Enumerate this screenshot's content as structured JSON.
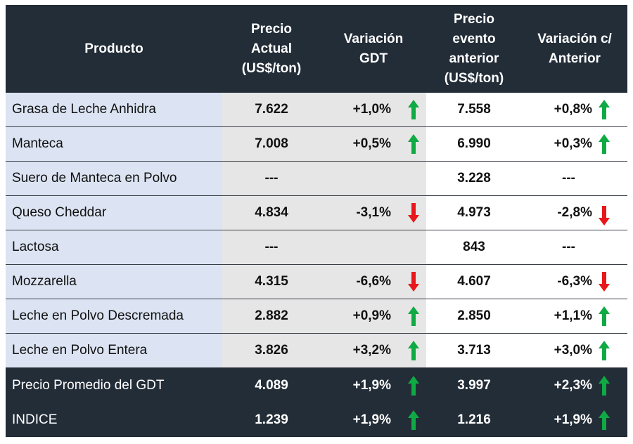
{
  "headers": {
    "producto": [
      "Producto"
    ],
    "precio_actual": [
      "Precio",
      "Actual",
      "(US$/ton)"
    ],
    "variacion_gdt": [
      "Variación",
      "GDT"
    ],
    "precio_anterior": [
      "Precio",
      "evento",
      "anterior",
      "(US$/ton)"
    ],
    "variacion_anterior": [
      "Variación c/",
      "Anterior"
    ]
  },
  "colors": {
    "up": "#0faa44",
    "down": "#e8171b",
    "dark": "#232d38"
  },
  "rows": [
    {
      "product": "Grasa de Leche Anhidra",
      "price": "7.622",
      "var_gdt": "+1,0%",
      "gdt_dir": "up-arrow-icon",
      "prev_price": "7.558",
      "var_prev": "+0,8%",
      "prev_dir": "up-arrow-icon"
    },
    {
      "product": "Manteca",
      "price": "7.008",
      "var_gdt": "+0,5%",
      "gdt_dir": "up-arrow-icon",
      "prev_price": "6.990",
      "var_prev": "+0,3%",
      "prev_dir": "up-arrow-icon"
    },
    {
      "product": "Suero de Manteca en Polvo",
      "price": "---",
      "var_gdt": "",
      "gdt_dir": "",
      "prev_price": "3.228",
      "var_prev": "---",
      "prev_dir": ""
    },
    {
      "product": "Queso Cheddar",
      "price": "4.834",
      "var_gdt": "-3,1%",
      "gdt_dir": "down-arrow-icon",
      "prev_price": "4.973",
      "var_prev": "-2,8%",
      "prev_dir": "down-arrow-icon"
    },
    {
      "product": "Lactosa",
      "price": "---",
      "var_gdt": "",
      "gdt_dir": "",
      "prev_price": "843",
      "var_prev": "---",
      "prev_dir": ""
    },
    {
      "product": "Mozzarella",
      "price": "4.315",
      "var_gdt": "-6,6%",
      "gdt_dir": "down-arrow-icon",
      "prev_price": "4.607",
      "var_prev": "-6,3%",
      "prev_dir": "down-arrow-icon"
    },
    {
      "product": "Leche en Polvo Descremada",
      "price": "2.882",
      "var_gdt": "+0,9%",
      "gdt_dir": "up-arrow-icon",
      "prev_price": "2.850",
      "var_prev": "+1,1%",
      "prev_dir": "up-arrow-icon"
    },
    {
      "product": "Leche en Polvo Entera",
      "price": "3.826",
      "var_gdt": "+3,2%",
      "gdt_dir": "up-arrow-icon",
      "prev_price": "3.713",
      "var_prev": "+3,0%",
      "prev_dir": "up-arrow-icon"
    }
  ],
  "footer": [
    {
      "product": "Precio Promedio del GDT",
      "price": "4.089",
      "var_gdt": "+1,9%",
      "gdt_dir": "up-arrow-icon",
      "prev_price": "3.997",
      "var_prev": "+2,3%",
      "prev_dir": "up-arrow-icon"
    },
    {
      "product": "INDICE",
      "price": "1.239",
      "var_gdt": "+1,9%",
      "gdt_dir": "up-arrow-icon",
      "prev_price": "1.216",
      "var_prev": "+1,9%",
      "prev_dir": "up-arrow-icon"
    }
  ]
}
